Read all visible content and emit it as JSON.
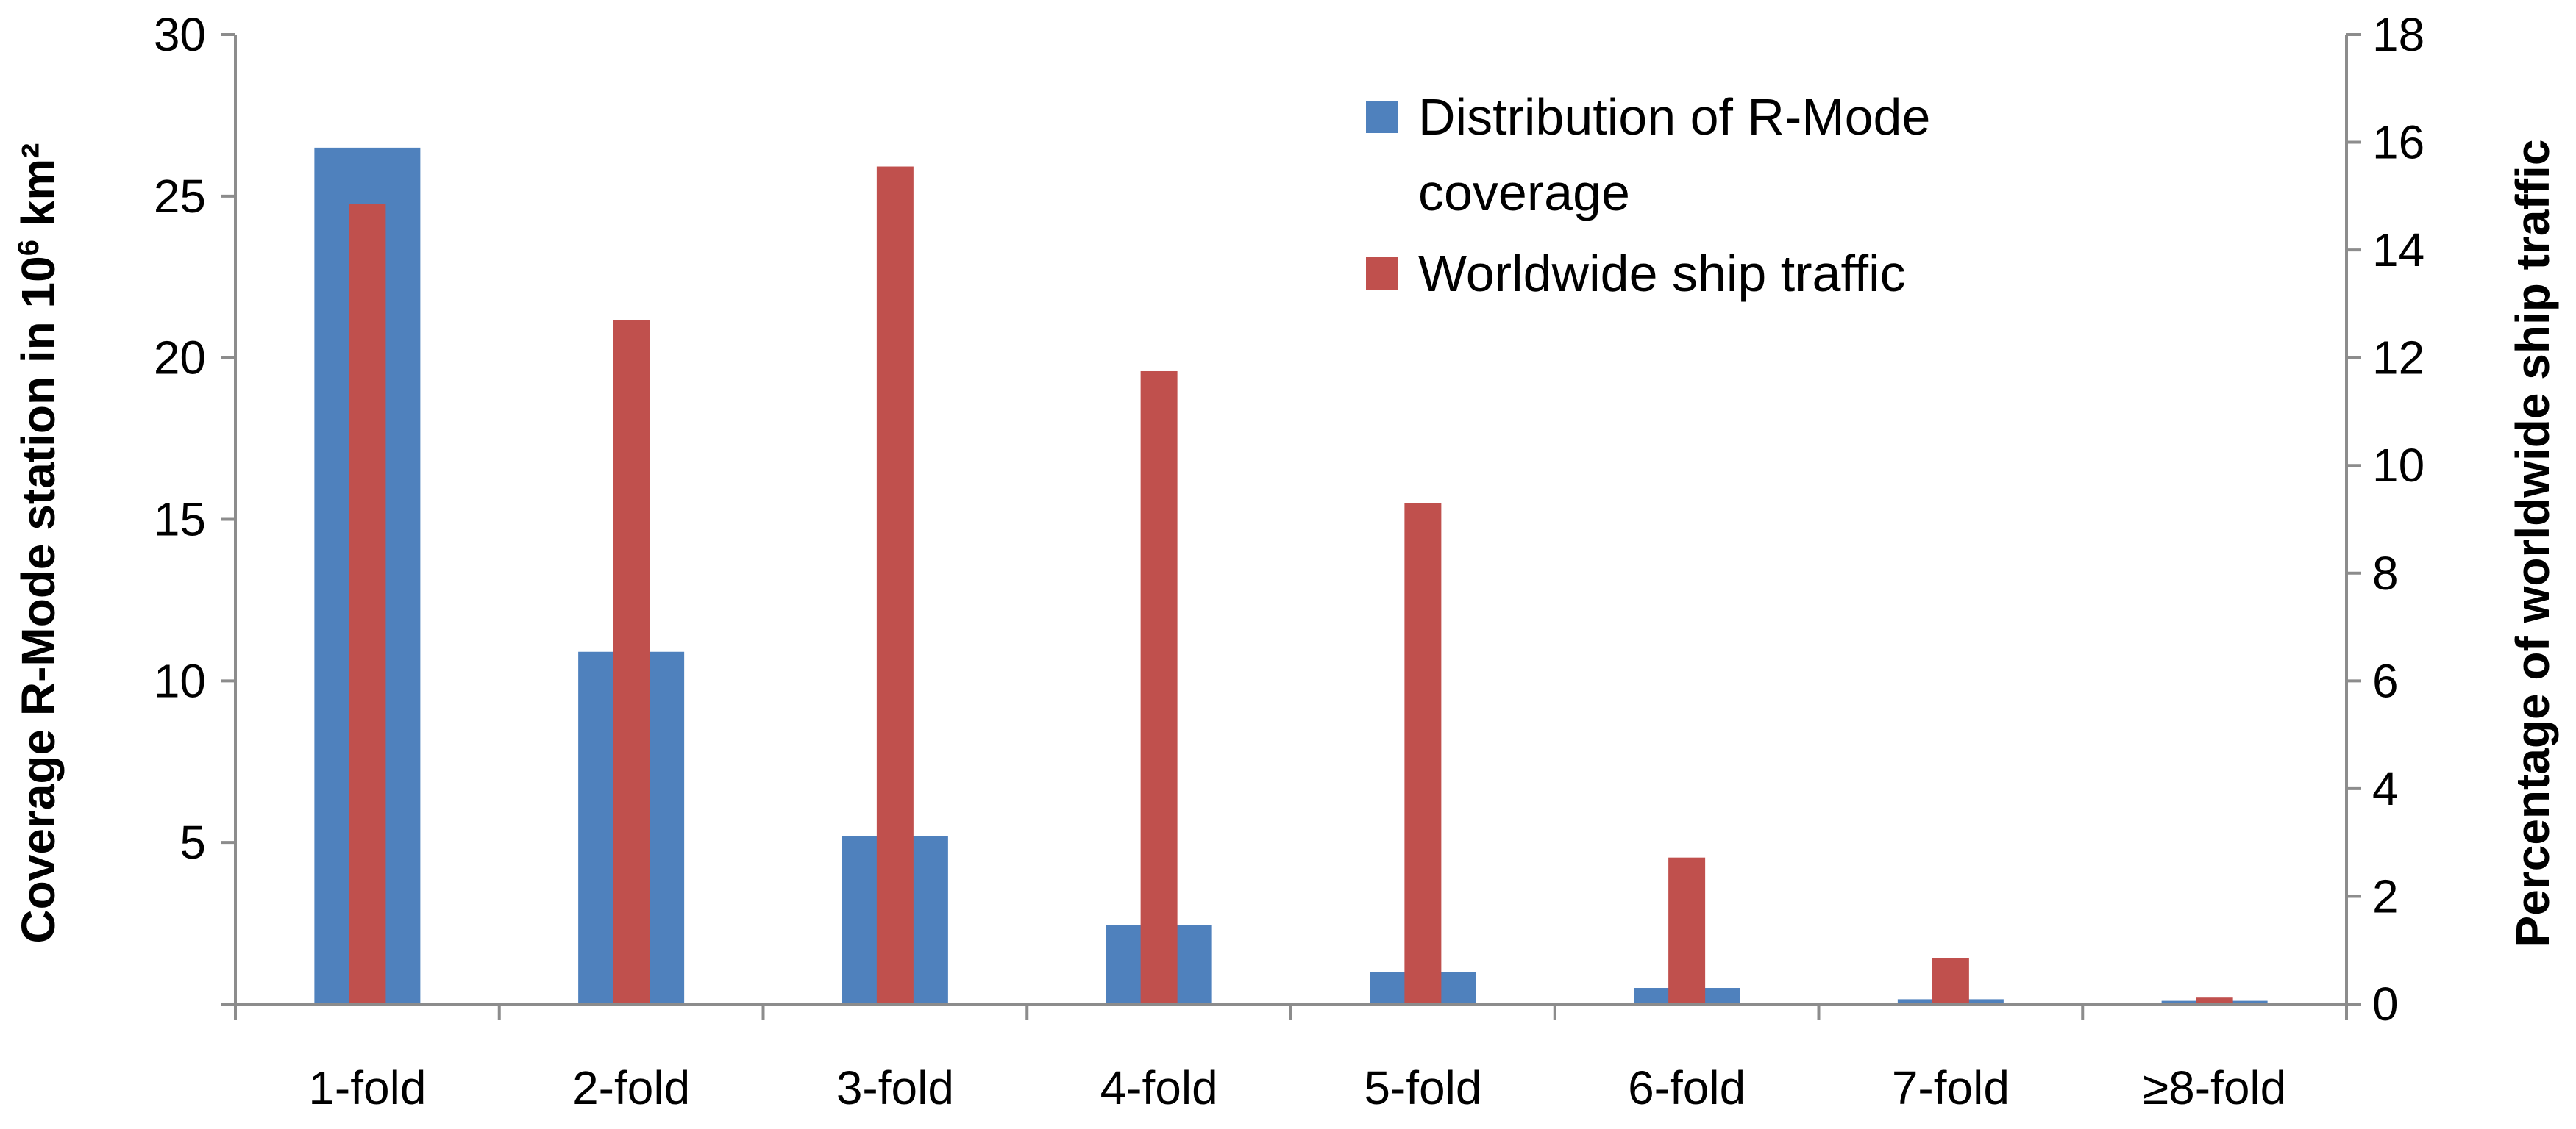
{
  "chart_data": {
    "type": "bar",
    "categories": [
      "1-fold",
      "2-fold",
      "3-fold",
      "4-fold",
      "5-fold",
      "6-fold",
      "7-fold",
      "≥8-fold"
    ],
    "series": [
      {
        "name": "Distribution of R-Mode coverage",
        "axis": "left",
        "color": "#4f81bd",
        "values": [
          26.5,
          10.9,
          5.2,
          2.45,
          1.0,
          0.5,
          0.15,
          0.1
        ]
      },
      {
        "name": "Worldwide ship traffic",
        "axis": "right",
        "color": "#c0504d",
        "values": [
          14.85,
          12.7,
          15.55,
          11.75,
          9.3,
          2.72,
          0.85,
          0.12
        ]
      }
    ],
    "y_left": {
      "label_prefix": "Coverage R-Mode station in 10",
      "label_sup": "6",
      "label_suffix": " km²",
      "ylim": [
        0,
        30
      ],
      "ticks": [
        "5",
        "10",
        "15",
        "20",
        "25",
        "30"
      ],
      "tick_values": [
        5,
        10,
        15,
        20,
        25,
        30
      ]
    },
    "y_right": {
      "label": "Percentage of worldwide ship traffic",
      "ylim": [
        0,
        18
      ],
      "ticks": [
        "0",
        "2",
        "4",
        "6",
        "8",
        "10",
        "12",
        "14",
        "16",
        "18"
      ],
      "tick_values": [
        0,
        2,
        4,
        6,
        8,
        10,
        12,
        14,
        16,
        18
      ]
    },
    "legend": {
      "placement": "top-center",
      "entries": [
        "Distribution of R-Mode",
        "coverage",
        "Worldwide ship traffic"
      ]
    },
    "grid": false
  }
}
